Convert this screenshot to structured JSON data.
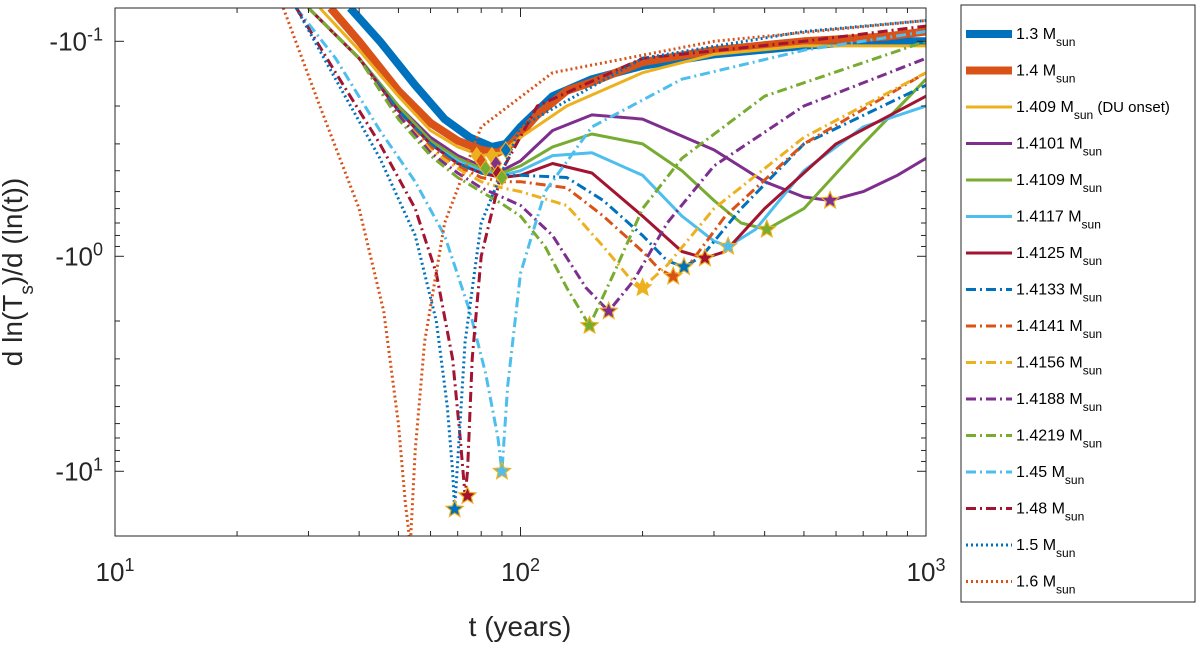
{
  "chart_data": {
    "type": "line",
    "xlabel": "t (years)",
    "ylabel_main": "d ln(T",
    "ylabel_sub": "s",
    "ylabel_tail": ")/d (ln(t))",
    "x_scale": "log",
    "y_scale": "log (magnitude), negative values",
    "xlim": [
      10,
      1000
    ],
    "ylim": [
      -0.07,
      -20
    ],
    "x_ticks": [
      {
        "value": 10,
        "base": "10",
        "exp": "1"
      },
      {
        "value": 100,
        "base": "10",
        "exp": "2"
      },
      {
        "value": 1000,
        "base": "10",
        "exp": "3"
      }
    ],
    "y_ticks": [
      {
        "value": -0.1,
        "base": "-10",
        "exp": "-1"
      },
      {
        "value": -1,
        "base": "-10",
        "exp": "0"
      },
      {
        "value": -10,
        "base": "-10",
        "exp": "1"
      }
    ],
    "grid": false,
    "legend_position": "outside right",
    "series": [
      {
        "name": "1.3 M",
        "sub": "sun",
        "suffix": "",
        "color": "#0072BD",
        "style": "solid",
        "width": 8,
        "x": [
          38,
          45,
          55,
          65,
          75,
          85,
          92,
          100,
          120,
          150,
          200,
          300,
          500,
          700,
          1000
        ],
        "y": [
          -0.07,
          -0.1,
          -0.16,
          -0.23,
          -0.28,
          -0.31,
          -0.3,
          -0.25,
          -0.18,
          -0.15,
          -0.13,
          -0.115,
          -0.105,
          -0.1,
          -0.1
        ]
      },
      {
        "name": "1.4 M",
        "sub": "sun",
        "suffix": "",
        "color": "#D95319",
        "style": "solid",
        "width": 8,
        "x": [
          34,
          40,
          50,
          60,
          70,
          80,
          88,
          95,
          110,
          130,
          150,
          200,
          300,
          500,
          800,
          1000
        ],
        "y": [
          -0.07,
          -0.1,
          -0.17,
          -0.24,
          -0.29,
          -0.32,
          -0.33,
          -0.3,
          -0.22,
          -0.17,
          -0.155,
          -0.125,
          -0.11,
          -0.1,
          -0.095,
          -0.09
        ]
      },
      {
        "name": "1.409 M",
        "sub": "sun",
        "suffix": " (DU onset)",
        "color": "#EDB120",
        "style": "solid",
        "width": 3,
        "x": [
          32,
          40,
          50,
          60,
          70,
          80,
          90,
          100,
          130,
          200,
          300,
          500,
          1000
        ],
        "y": [
          -0.07,
          -0.11,
          -0.18,
          -0.26,
          -0.31,
          -0.34,
          -0.33,
          -0.28,
          -0.2,
          -0.14,
          -0.115,
          -0.105,
          -0.105
        ]
      },
      {
        "name": "1.4101 M",
        "sub": "sun",
        "suffix": "",
        "color": "#7E2F8E",
        "style": "solid",
        "width": 3,
        "x": [
          30,
          40,
          50,
          60,
          70,
          80,
          90,
          100,
          120,
          150,
          200,
          300,
          400,
          500,
          580,
          700,
          850,
          1000
        ],
        "y": [
          -0.07,
          -0.12,
          -0.2,
          -0.28,
          -0.34,
          -0.38,
          -0.4,
          -0.36,
          -0.26,
          -0.22,
          -0.23,
          -0.32,
          -0.45,
          -0.53,
          -0.55,
          -0.5,
          -0.42,
          -0.35
        ]
      },
      {
        "name": "1.4109 M",
        "sub": "sun",
        "suffix": "",
        "color": "#77AC30",
        "style": "solid",
        "width": 3,
        "x": [
          30,
          40,
          50,
          60,
          70,
          80,
          90,
          100,
          120,
          150,
          200,
          250,
          300,
          350,
          405,
          500,
          700,
          1000
        ],
        "y": [
          -0.07,
          -0.12,
          -0.2,
          -0.29,
          -0.35,
          -0.39,
          -0.41,
          -0.38,
          -0.31,
          -0.27,
          -0.3,
          -0.4,
          -0.55,
          -0.7,
          -0.75,
          -0.6,
          -0.3,
          -0.15
        ]
      },
      {
        "name": "1.4117 M",
        "sub": "sun",
        "suffix": "",
        "color": "#4DBEEE",
        "style": "solid",
        "width": 3,
        "x": [
          30,
          40,
          50,
          60,
          70,
          80,
          90,
          100,
          120,
          150,
          200,
          250,
          300,
          325,
          380,
          500,
          700,
          1000
        ],
        "y": [
          -0.07,
          -0.12,
          -0.21,
          -0.3,
          -0.36,
          -0.4,
          -0.42,
          -0.4,
          -0.34,
          -0.33,
          -0.42,
          -0.65,
          -0.85,
          -0.9,
          -0.75,
          -0.4,
          -0.25,
          -0.2
        ]
      },
      {
        "name": "1.4125 M",
        "sub": "sun",
        "suffix": "",
        "color": "#A2142F",
        "style": "solid",
        "width": 3,
        "x": [
          30,
          40,
          50,
          60,
          70,
          80,
          90,
          100,
          120,
          150,
          200,
          250,
          285,
          320,
          400,
          600,
          1000
        ],
        "y": [
          -0.07,
          -0.12,
          -0.21,
          -0.3,
          -0.37,
          -0.41,
          -0.43,
          -0.42,
          -0.37,
          -0.41,
          -0.65,
          -0.95,
          -1.02,
          -0.95,
          -0.6,
          -0.3,
          -0.18
        ]
      },
      {
        "name": "1.4133 M",
        "sub": "sun",
        "suffix": "",
        "color": "#0072BD",
        "style": "dashdot",
        "width": 3,
        "x": [
          30,
          40,
          50,
          60,
          70,
          80,
          90,
          100,
          130,
          160,
          200,
          230,
          253,
          280,
          350,
          500,
          1000
        ],
        "y": [
          -0.07,
          -0.12,
          -0.21,
          -0.3,
          -0.37,
          -0.41,
          -0.42,
          -0.42,
          -0.43,
          -0.55,
          -0.8,
          -1.05,
          -1.12,
          -1.0,
          -0.6,
          -0.3,
          -0.16
        ]
      },
      {
        "name": "1.4141 M",
        "sub": "sun",
        "suffix": "",
        "color": "#D95319",
        "style": "dashdot",
        "width": 3,
        "x": [
          30,
          40,
          50,
          60,
          70,
          80,
          90,
          100,
          130,
          160,
          200,
          220,
          238,
          260,
          320,
          500,
          1000
        ],
        "y": [
          -0.07,
          -0.12,
          -0.22,
          -0.31,
          -0.38,
          -0.43,
          -0.45,
          -0.45,
          -0.48,
          -0.65,
          -0.95,
          -1.15,
          -1.24,
          -1.1,
          -0.65,
          -0.3,
          -0.14
        ]
      },
      {
        "name": "1.4156 M",
        "sub": "sun",
        "suffix": "",
        "color": "#EDB120",
        "style": "dashdot",
        "width": 3,
        "x": [
          30,
          40,
          50,
          60,
          70,
          80,
          90,
          100,
          130,
          160,
          185,
          200,
          230,
          300,
          500,
          1000
        ],
        "y": [
          -0.07,
          -0.12,
          -0.22,
          -0.32,
          -0.39,
          -0.45,
          -0.48,
          -0.5,
          -0.58,
          -0.9,
          -1.25,
          -1.4,
          -1.1,
          -0.6,
          -0.28,
          -0.14
        ]
      },
      {
        "name": "1.4188 M",
        "sub": "sun",
        "suffix": "",
        "color": "#7E2F8E",
        "style": "dashdot",
        "width": 3,
        "x": [
          30,
          40,
          50,
          60,
          70,
          80,
          90,
          100,
          120,
          145,
          165,
          190,
          230,
          300,
          500,
          1000
        ],
        "y": [
          -0.07,
          -0.12,
          -0.22,
          -0.33,
          -0.41,
          -0.48,
          -0.53,
          -0.58,
          -0.8,
          -1.4,
          -1.8,
          -1.3,
          -0.7,
          -0.38,
          -0.2,
          -0.12
        ]
      },
      {
        "name": "1.4219 M",
        "sub": "sun",
        "suffix": "",
        "color": "#77AC30",
        "style": "dashdot",
        "width": 3,
        "x": [
          30,
          40,
          50,
          60,
          70,
          80,
          90,
          100,
          115,
          130,
          148,
          170,
          200,
          250,
          400,
          1000
        ],
        "y": [
          -0.07,
          -0.12,
          -0.23,
          -0.34,
          -0.43,
          -0.5,
          -0.57,
          -0.65,
          -0.9,
          -1.4,
          -2.1,
          -1.2,
          -0.6,
          -0.35,
          -0.18,
          -0.1
        ]
      },
      {
        "name": "1.45 M",
        "sub": "sun",
        "suffix": "",
        "color": "#4DBEEE",
        "style": "dashdot",
        "width": 3,
        "x": [
          28,
          35,
          45,
          55,
          65,
          75,
          82,
          88,
          90,
          93,
          100,
          115,
          150,
          250,
          500,
          1000
        ],
        "y": [
          -0.07,
          -0.12,
          -0.26,
          -0.45,
          -0.8,
          -1.8,
          -3.5,
          -7,
          -10,
          -4,
          -1.2,
          -0.5,
          -0.25,
          -0.15,
          -0.11,
          -0.09
        ]
      },
      {
        "name": "1.48 M",
        "sub": "sun",
        "suffix": "",
        "color": "#A2142F",
        "style": "dashdot",
        "width": 3,
        "x": [
          28,
          35,
          45,
          55,
          62,
          68,
          71,
          73,
          74,
          76,
          80,
          90,
          110,
          200,
          500,
          1000
        ],
        "y": [
          -0.07,
          -0.14,
          -0.3,
          -0.6,
          -1.2,
          -3,
          -7,
          -13,
          -10,
          -3,
          -1.0,
          -0.4,
          -0.2,
          -0.12,
          -0.1,
          -0.085
        ]
      },
      {
        "name": "1.5 M",
        "sub": "sun",
        "suffix": "",
        "color": "#0072BD",
        "style": "dot",
        "width": 3,
        "x": [
          28,
          35,
          45,
          55,
          62,
          66,
          68,
          68.8,
          70,
          73,
          80,
          100,
          200,
          500,
          1000
        ],
        "y": [
          -0.07,
          -0.15,
          -0.35,
          -0.8,
          -2,
          -5,
          -10,
          -15,
          -9,
          -2.5,
          -0.7,
          -0.25,
          -0.12,
          -0.09,
          -0.08
        ]
      },
      {
        "name": "1.6 M",
        "sub": "sun",
        "suffix": "",
        "color": "#D95319",
        "style": "dot",
        "width": 3,
        "x": [
          26,
          32,
          40,
          46,
          50,
          52,
          53.5,
          55,
          58,
          65,
          80,
          120,
          300,
          1000
        ],
        "y": [
          -0.07,
          -0.2,
          -0.6,
          -1.8,
          -6,
          -14,
          -22,
          -8,
          -2.5,
          -0.7,
          -0.25,
          -0.14,
          -0.1,
          -0.08
        ]
      }
    ],
    "markers": {
      "diamonds": [
        {
          "x": 78,
          "y": -0.34,
          "color": "#EDB120"
        },
        {
          "x": 80,
          "y": -0.36,
          "color": "#D95319"
        },
        {
          "x": 82,
          "y": -0.39,
          "color": "#77AC30"
        },
        {
          "x": 85,
          "y": -0.34,
          "color": "#EDB120"
        },
        {
          "x": 87,
          "y": -0.37,
          "color": "#7E2F8E"
        },
        {
          "x": 88,
          "y": -0.41,
          "color": "#A2142F"
        },
        {
          "x": 90,
          "y": -0.43,
          "color": "#77AC30"
        },
        {
          "x": 92,
          "y": -0.32,
          "color": "#0072BD"
        }
      ],
      "stars": [
        {
          "x": 53.5,
          "y": -22,
          "color": "#D95319"
        },
        {
          "x": 68.8,
          "y": -15,
          "color": "#0072BD"
        },
        {
          "x": 74,
          "y": -13,
          "color": "#A2142F"
        },
        {
          "x": 90,
          "y": -10,
          "color": "#4DBEEE"
        },
        {
          "x": 148,
          "y": -2.1,
          "color": "#77AC30"
        },
        {
          "x": 165,
          "y": -1.8,
          "color": "#7E2F8E"
        },
        {
          "x": 200,
          "y": -1.4,
          "color": "#EDB120"
        },
        {
          "x": 238,
          "y": -1.24,
          "color": "#D95319"
        },
        {
          "x": 253,
          "y": -1.12,
          "color": "#0072BD"
        },
        {
          "x": 285,
          "y": -1.02,
          "color": "#A2142F"
        },
        {
          "x": 325,
          "y": -0.9,
          "color": "#4DBEEE"
        },
        {
          "x": 405,
          "y": -0.75,
          "color": "#77AC30"
        },
        {
          "x": 580,
          "y": -0.55,
          "color": "#7E2F8E"
        }
      ]
    }
  }
}
